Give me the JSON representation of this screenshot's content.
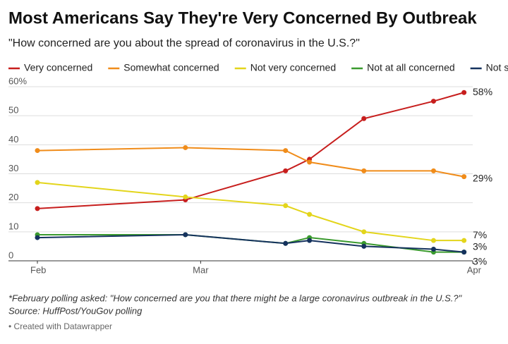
{
  "chart_data": {
    "type": "line",
    "title": "Most Americans Say They're Very Concerned By Outbreak",
    "subtitle": "\"How concerned are you about the spread of coronavirus in the U.S.?\"",
    "note": "*February polling asked: \"How concerned are you that there might be a large coronavirus outbreak in the U.S.?\"",
    "source": "Source: HuffPost/YouGov polling",
    "credit": "• Created with Datawrapper",
    "x": [
      0,
      0.68,
      1.14,
      1.25,
      1.5,
      1.82,
      1.96
    ],
    "xlim": [
      0,
      2
    ],
    "xticks": [
      {
        "value": 0,
        "label": "Feb"
      },
      {
        "value": 0.75,
        "label": "Mar"
      },
      {
        "value": 2,
        "label": "Apr"
      }
    ],
    "ylim": [
      0,
      60
    ],
    "yticks": [
      0,
      10,
      20,
      30,
      40,
      50,
      {
        "value": 60,
        "label": "60%"
      }
    ],
    "grid": true,
    "legend": "top",
    "series": [
      {
        "name": "Very concerned",
        "color": "#c71e1d",
        "values": [
          18,
          21,
          31,
          35,
          49,
          55,
          58
        ],
        "value_labels": [
          null,
          null,
          null,
          null,
          null,
          null,
          "58%"
        ]
      },
      {
        "name": "Somewhat concerned",
        "color": "#f08c1a",
        "values": [
          38,
          39,
          38,
          34,
          31,
          31,
          29
        ],
        "value_labels": [
          null,
          null,
          null,
          null,
          null,
          null,
          "29%"
        ]
      },
      {
        "name": "Not very concerned",
        "color": "#e3d51b",
        "values": [
          27,
          22,
          19,
          16,
          10,
          7,
          7
        ],
        "value_labels": [
          null,
          null,
          null,
          null,
          null,
          null,
          "7%"
        ]
      },
      {
        "name": "Not at all concerned",
        "color": "#3a9a2e",
        "values": [
          9,
          9,
          6,
          8,
          6,
          3,
          3
        ],
        "value_labels": [
          null,
          null,
          null,
          null,
          null,
          null,
          "3%"
        ]
      },
      {
        "name": "Not sure",
        "color": "#15325e",
        "values": [
          8,
          9,
          6,
          7,
          5,
          4,
          3
        ],
        "value_labels": [
          null,
          null,
          null,
          null,
          null,
          null,
          "3%"
        ]
      }
    ]
  }
}
